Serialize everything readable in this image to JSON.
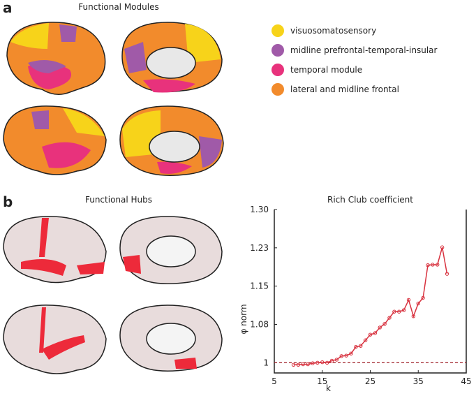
{
  "figure": {
    "panel_a": {
      "label": "a",
      "title": "Functional Modules",
      "legend": [
        {
          "name": "visuosomatosensory",
          "color": "#f7d31a"
        },
        {
          "name": "midline prefrontal-temporal-insular",
          "color": "#a05aa8"
        },
        {
          "name": "temporal module",
          "color": "#e8327c"
        },
        {
          "name": "lateral and midline frontal",
          "color": "#f28b2c"
        }
      ]
    },
    "panel_b": {
      "label": "b",
      "title": "Functional Hubs"
    }
  },
  "chart_data": {
    "type": "line",
    "title": "Rich Club coefficient",
    "xlabel": "k",
    "ylabel": "φ norm",
    "x": [
      9,
      10,
      11,
      12,
      13,
      14,
      15,
      16,
      17,
      18,
      19,
      20,
      21,
      22,
      23,
      24,
      25,
      26,
      27,
      28,
      29,
      30,
      31,
      32,
      33,
      34,
      35,
      36,
      37,
      38,
      39,
      40,
      41
    ],
    "series": [
      {
        "color": "#d8323f",
        "values": [
          0.996,
          0.996,
          0.997,
          0.997,
          0.999,
          1.0,
          1.001,
          1.0,
          1.004,
          1.006,
          1.013,
          1.014,
          1.018,
          1.031,
          1.033,
          1.044,
          1.055,
          1.058,
          1.069,
          1.076,
          1.088,
          1.1,
          1.1,
          1.103,
          1.123,
          1.091,
          1.116,
          1.127,
          1.191,
          1.192,
          1.192,
          1.226,
          1.174
        ]
      }
    ],
    "reference_line": 1,
    "reference_color": "#a0222a",
    "xlim": [
      5,
      45
    ],
    "xticks": [
      5,
      15,
      25,
      35,
      45
    ],
    "ylim": [
      0.98,
      1.3
    ],
    "yticks": [
      1,
      {
        "value": 1.075,
        "label": "1.08"
      },
      1.15,
      {
        "value": 1.225,
        "label": "1.23"
      },
      {
        "value": 1.3,
        "label": "1.30"
      }
    ]
  }
}
